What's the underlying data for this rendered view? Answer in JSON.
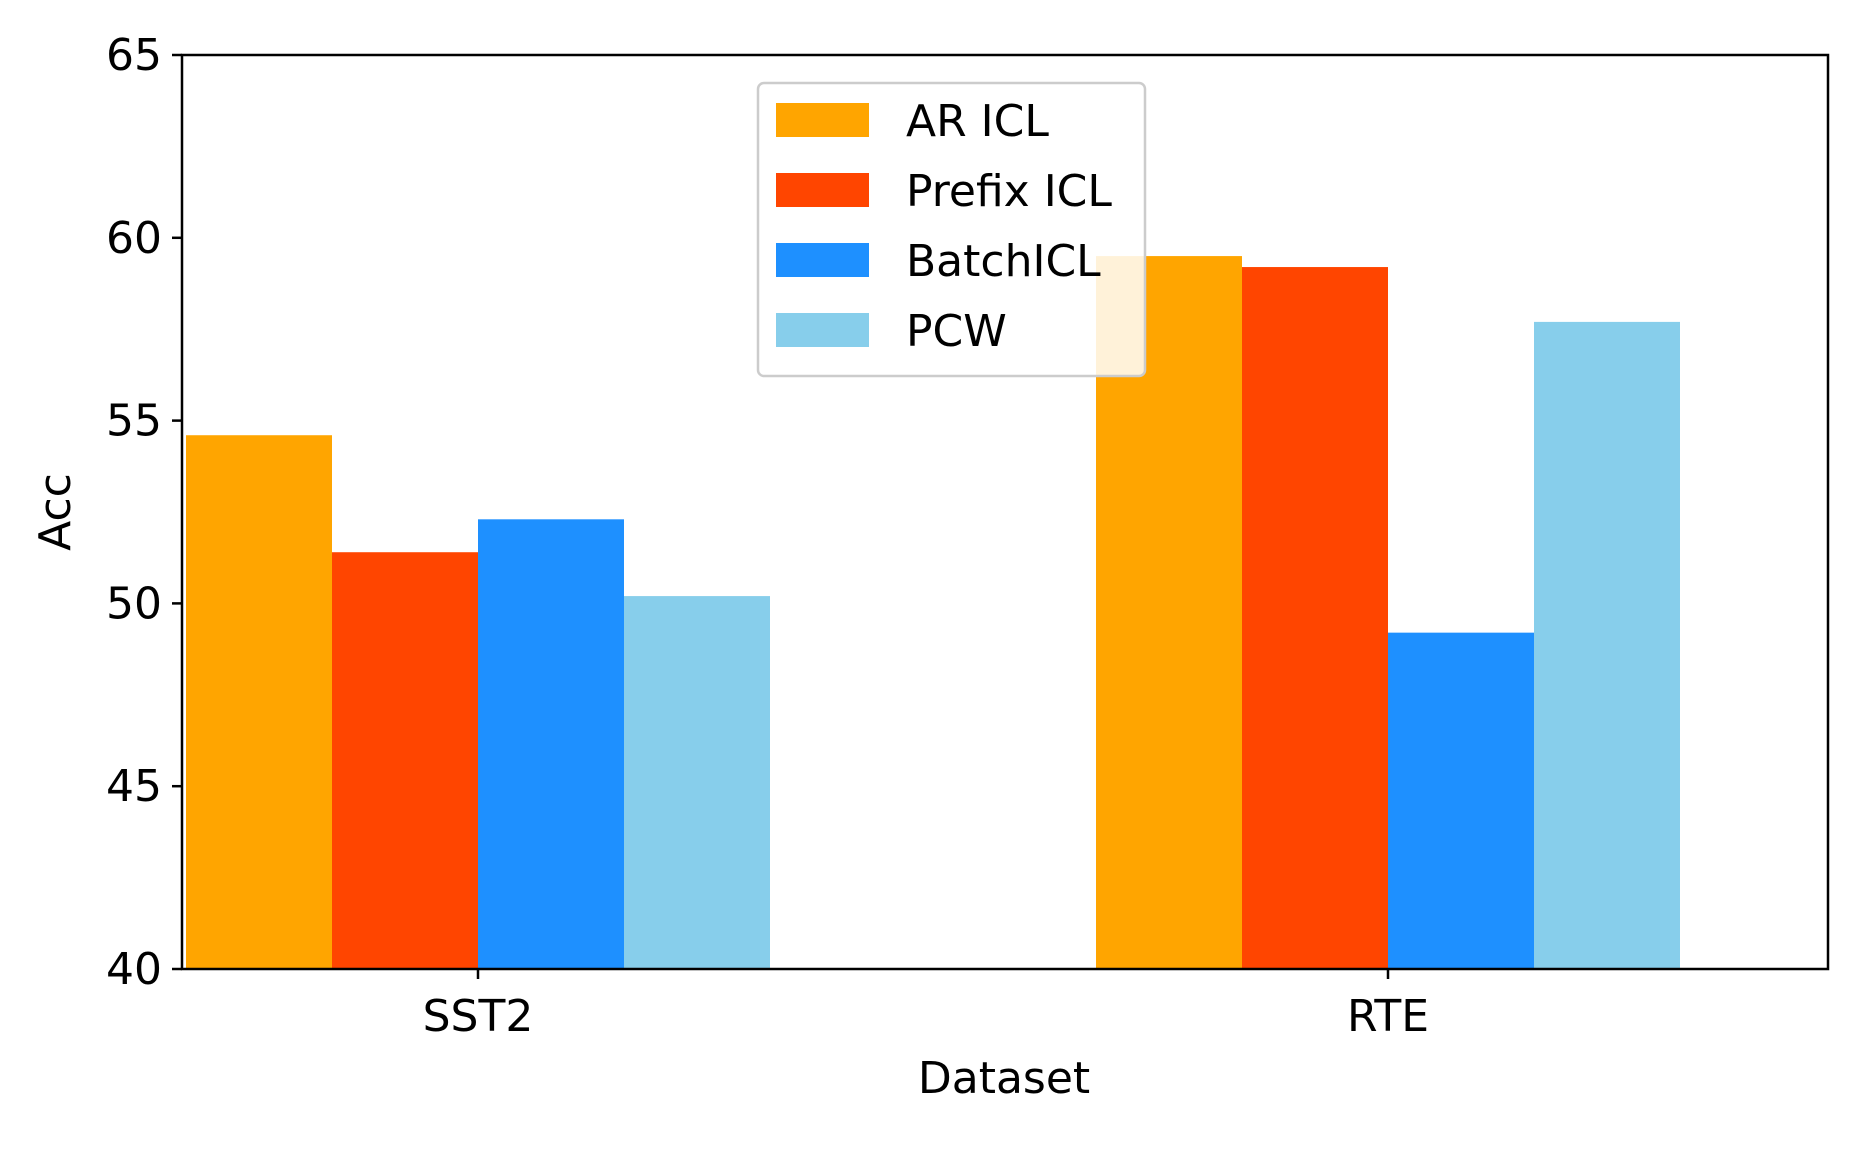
{
  "chart_data": {
    "type": "bar",
    "xlabel": "Dataset",
    "ylabel": "Acc",
    "categories": [
      "SST2",
      "RTE"
    ],
    "ylim": [
      40,
      65
    ],
    "yticks": [
      40,
      45,
      50,
      55,
      60,
      65
    ],
    "series": [
      {
        "name": "AR ICL",
        "color": "#FFA500",
        "values": [
          54.6,
          59.5
        ]
      },
      {
        "name": "Prefix ICL",
        "color": "#FF4500",
        "values": [
          51.4,
          59.2
        ]
      },
      {
        "name": "BatchICL",
        "color": "#1E90FF",
        "values": [
          52.3,
          49.2
        ]
      },
      {
        "name": "PCW",
        "color": "#87CEEB",
        "values": [
          50.2,
          57.7
        ]
      }
    ],
    "legend_position": "upper center",
    "grid": false
  }
}
